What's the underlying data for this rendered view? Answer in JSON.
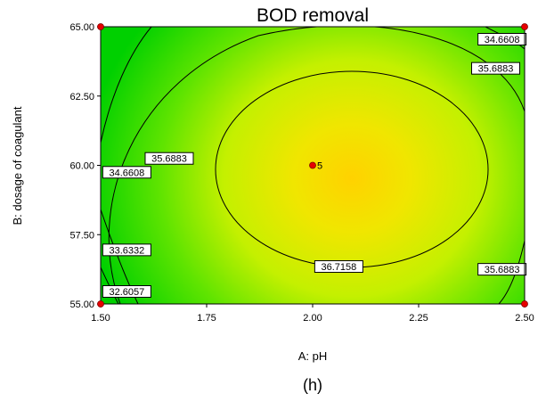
{
  "chart_data": {
    "type": "contour",
    "title": "BOD removal",
    "xlabel": "A: pH",
    "ylabel": "B: dosage of coagulant",
    "xlim": [
      1.5,
      2.5
    ],
    "ylim": [
      55.0,
      65.0
    ],
    "xticks": [
      "1.50",
      "1.75",
      "2.00",
      "2.25",
      "2.50"
    ],
    "yticks": [
      "55.00",
      "57.50",
      "60.00",
      "62.50",
      "65.00"
    ],
    "contour_labels": [
      {
        "text": "32.6057",
        "x": 1.505,
        "y": 55.45
      },
      {
        "text": "33.6332",
        "x": 1.505,
        "y": 56.95
      },
      {
        "text": "34.6608",
        "x": 1.505,
        "y": 59.75
      },
      {
        "text": "35.6883",
        "x": 1.605,
        "y": 60.25
      },
      {
        "text": "36.7158",
        "x": 2.005,
        "y": 56.35
      },
      {
        "text": "35.6883",
        "x": 2.375,
        "y": 63.5
      },
      {
        "text": "34.6608",
        "x": 2.39,
        "y": 64.55
      },
      {
        "text": "35.6883",
        "x": 2.39,
        "y": 56.25
      }
    ],
    "design_point": {
      "x": 2.0,
      "y": 60.0,
      "label": "5"
    },
    "corner_points": [
      {
        "x": 1.5,
        "y": 55.0
      },
      {
        "x": 1.5,
        "y": 65.0
      },
      {
        "x": 2.5,
        "y": 55.0
      },
      {
        "x": 2.5,
        "y": 65.0
      }
    ],
    "colors": {
      "high": "#ffd500",
      "mid": "#c8f000",
      "low": "#00dc00",
      "line": "#000000",
      "point": "#e60000"
    }
  },
  "caption": "(h)"
}
